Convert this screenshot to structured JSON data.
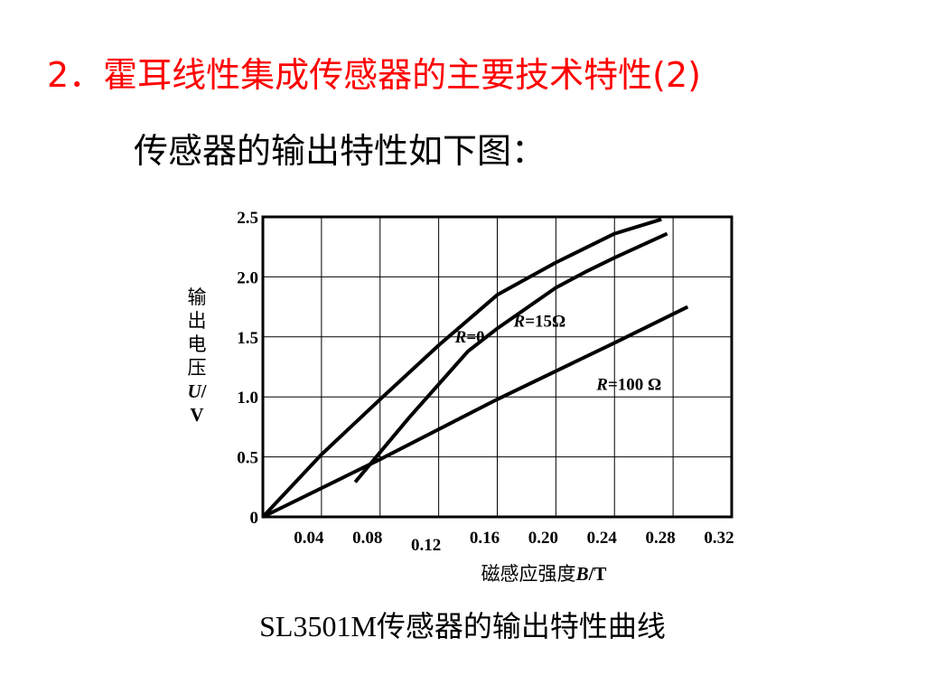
{
  "slide": {
    "title": "2．霍耳线性集成传感器的主要技术特性(2)",
    "subtitle": "传感器的输出特性如下图：",
    "caption": "SL3501M传感器的输出特性曲线",
    "title_color": "#ff0000"
  },
  "chart_data": {
    "type": "line",
    "title": "",
    "xlabel": "磁感应强度B/T",
    "ylabel": "输出电压U/V",
    "xlim": [
      0,
      0.32
    ],
    "ylim": [
      0,
      2.5
    ],
    "grid": true,
    "x_ticks": [
      {
        "value": 0.04,
        "label": "0.04"
      },
      {
        "value": 0.08,
        "label": "0.08"
      },
      {
        "value": 0.12,
        "label": "0.12"
      },
      {
        "value": 0.16,
        "label": "0.16"
      },
      {
        "value": 0.2,
        "label": "0.20"
      },
      {
        "value": 0.24,
        "label": "0.24"
      },
      {
        "value": 0.28,
        "label": "0.28"
      },
      {
        "value": 0.32,
        "label": "0.32"
      }
    ],
    "y_ticks": [
      {
        "value": 0,
        "label": "0"
      },
      {
        "value": 0.5,
        "label": "0.5"
      },
      {
        "value": 1.0,
        "label": "1.0"
      },
      {
        "value": 1.5,
        "label": "1.5"
      },
      {
        "value": 2.0,
        "label": "2.0"
      },
      {
        "value": 2.5,
        "label": "2.5"
      }
    ],
    "series": [
      {
        "name": "R=0",
        "x": [
          0,
          0.04,
          0.08,
          0.12,
          0.16,
          0.2,
          0.24,
          0.272
        ],
        "y": [
          0,
          0.52,
          0.98,
          1.43,
          1.85,
          2.12,
          2.36,
          2.48
        ]
      },
      {
        "name": "R=15Ω",
        "x": [
          0.063,
          0.1,
          0.14,
          0.16,
          0.2,
          0.22,
          0.24,
          0.276
        ],
        "y": [
          0.29,
          0.83,
          1.38,
          1.57,
          1.91,
          2.04,
          2.16,
          2.36
        ]
      },
      {
        "name": "R=100 Ω",
        "x": [
          0,
          0.08,
          0.16,
          0.24,
          0.29
        ],
        "y": [
          0,
          0.48,
          0.98,
          1.45,
          1.75
        ]
      }
    ]
  }
}
